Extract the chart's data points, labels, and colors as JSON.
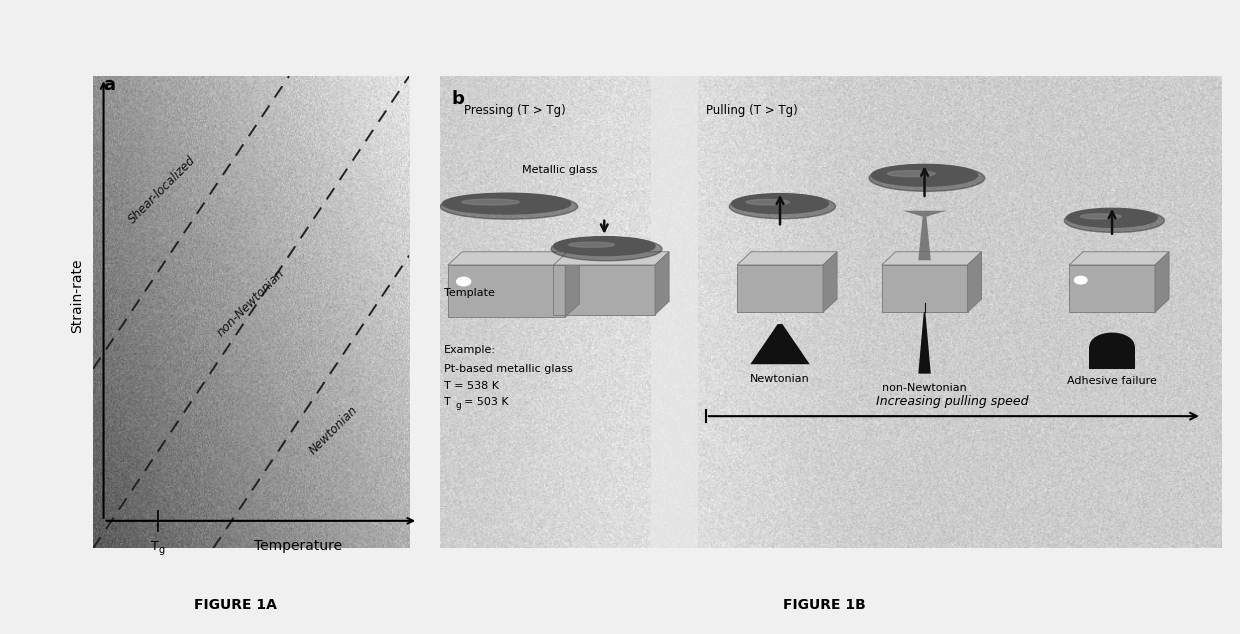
{
  "fig_width": 12.4,
  "fig_height": 6.34,
  "bg_color": "#f0f0f0",
  "panel_a_label": "a",
  "panel_b_label": "b",
  "panel_a_ylabel": "Strain-rate",
  "panel_a_xlabel": "Temperature",
  "panel_a_xg_label": "Tg",
  "panel_a_regions": [
    "Shear-localized",
    "non-Newtonian",
    "Newtonian"
  ],
  "dashed_line_color": "#222222",
  "pressing_label": "Pressing (T > Tg)",
  "pulling_label": "Pulling (T > Tg)",
  "metallic_glass_label": "Metallic glass",
  "template_label": "Template",
  "example_line1": "Example:",
  "example_line2": "Pt-based metallic glass",
  "example_line3": "T = 538 K",
  "example_line4": "Tg = 503 K",
  "newtonian_label": "Newtonian",
  "non_newtonian_label": "non-Newtonian",
  "adhesive_label": "Adhesive failure",
  "increasing_speed_label": "Increasing pulling speed",
  "figure_1a_label": "FIGURE 1A",
  "figure_1b_label": "FIGURE 1B",
  "arrow_color": "#111111",
  "disk_color": "#555555",
  "disk_highlight": "#888888",
  "block_front": "#aaaaaa",
  "block_top": "#cccccc",
  "block_right": "#888888",
  "white_dot": "#ffffff",
  "shape_color": "#111111"
}
